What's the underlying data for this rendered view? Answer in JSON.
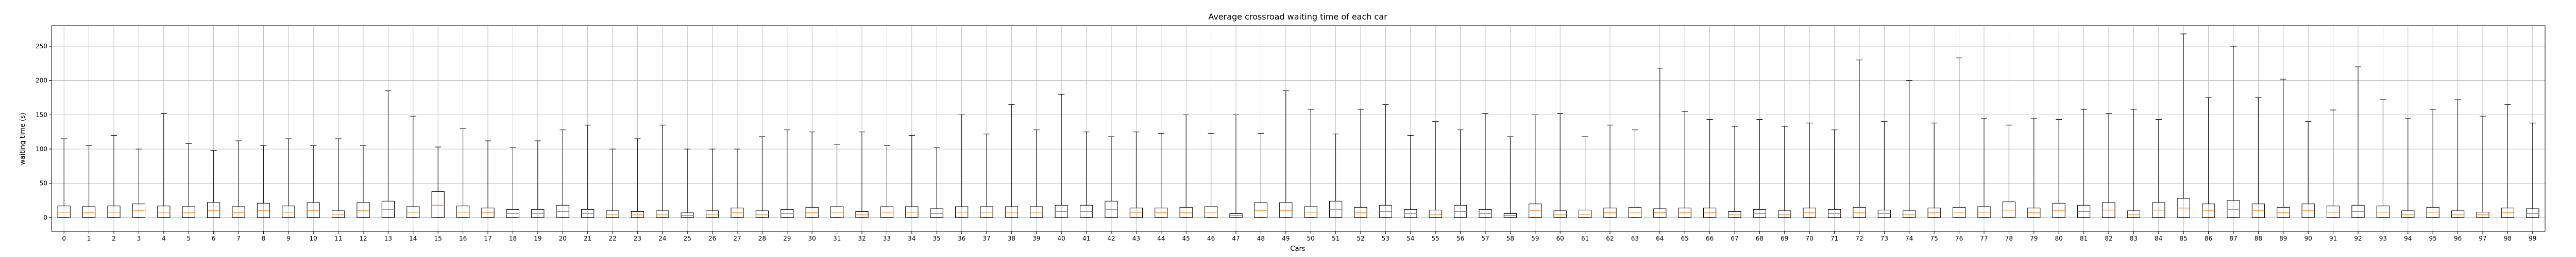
{
  "chart_data": {
    "type": "boxplot",
    "title": "Average crossroad waiting time of each car",
    "xlabel": "Cars",
    "ylabel": "waiting time (s)",
    "ylim": [
      -20,
      280
    ],
    "yticks": [
      0,
      50,
      100,
      150,
      200,
      250
    ],
    "grid": true,
    "colors": {
      "box": "#000000",
      "median": "#ff7f0e",
      "grid": "#b0b0b0",
      "background": "#ffffff"
    },
    "categories": [
      "0",
      "1",
      "2",
      "3",
      "4",
      "5",
      "6",
      "7",
      "8",
      "9",
      "10",
      "11",
      "12",
      "13",
      "14",
      "15",
      "16",
      "17",
      "18",
      "19",
      "20",
      "21",
      "22",
      "23",
      "24",
      "25",
      "26",
      "27",
      "28",
      "29",
      "30",
      "31",
      "32",
      "33",
      "34",
      "35",
      "36",
      "37",
      "38",
      "39",
      "40",
      "41",
      "42",
      "43",
      "44",
      "45",
      "46",
      "47",
      "48",
      "49",
      "50",
      "51",
      "52",
      "53",
      "54",
      "55",
      "56",
      "57",
      "58",
      "59",
      "60",
      "61",
      "62",
      "63",
      "64",
      "65",
      "66",
      "67",
      "68",
      "69",
      "70",
      "71",
      "72",
      "73",
      "74",
      "75",
      "76",
      "77",
      "78",
      "79",
      "80",
      "81",
      "82",
      "83",
      "84",
      "85",
      "86",
      "87",
      "88",
      "89",
      "90",
      "91",
      "92",
      "93",
      "94",
      "95",
      "96",
      "97",
      "98",
      "99"
    ],
    "boxes": [
      {
        "whislo": 0,
        "q1": 0,
        "med": 8,
        "q3": 17,
        "whishi": 115
      },
      {
        "whislo": 0,
        "q1": 0,
        "med": 7,
        "q3": 16,
        "whishi": 105
      },
      {
        "whislo": 0,
        "q1": 0,
        "med": 8,
        "q3": 17,
        "whishi": 120
      },
      {
        "whislo": 0,
        "q1": 0,
        "med": 10,
        "q3": 20,
        "whishi": 100
      },
      {
        "whislo": 0,
        "q1": 0,
        "med": 8,
        "q3": 17,
        "whishi": 152
      },
      {
        "whislo": 0,
        "q1": 0,
        "med": 7,
        "q3": 16,
        "whishi": 108
      },
      {
        "whislo": 0,
        "q1": 0,
        "med": 10,
        "q3": 22,
        "whishi": 98
      },
      {
        "whislo": 0,
        "q1": 0,
        "med": 7,
        "q3": 16,
        "whishi": 112
      },
      {
        "whislo": 0,
        "q1": 0,
        "med": 10,
        "q3": 21,
        "whishi": 105
      },
      {
        "whislo": 0,
        "q1": 0,
        "med": 8,
        "q3": 17,
        "whishi": 115
      },
      {
        "whislo": 0,
        "q1": 0,
        "med": 10,
        "q3": 22,
        "whishi": 105
      },
      {
        "whislo": 0,
        "q1": 0,
        "med": 5,
        "q3": 10,
        "whishi": 115
      },
      {
        "whislo": 0,
        "q1": 0,
        "med": 10,
        "q3": 22,
        "whishi": 105
      },
      {
        "whislo": 0,
        "q1": 0,
        "med": 12,
        "q3": 24,
        "whishi": 185
      },
      {
        "whislo": 0,
        "q1": 0,
        "med": 8,
        "q3": 16,
        "whishi": 148
      },
      {
        "whislo": 0,
        "q1": 0,
        "med": 18,
        "q3": 38,
        "whishi": 103
      },
      {
        "whislo": 0,
        "q1": 0,
        "med": 8,
        "q3": 17,
        "whishi": 130
      },
      {
        "whislo": 0,
        "q1": 0,
        "med": 7,
        "q3": 14,
        "whishi": 112
      },
      {
        "whislo": 0,
        "q1": 0,
        "med": 6,
        "q3": 12,
        "whishi": 102
      },
      {
        "whislo": 0,
        "q1": 0,
        "med": 6,
        "q3": 12,
        "whishi": 112
      },
      {
        "whislo": 0,
        "q1": 0,
        "med": 9,
        "q3": 18,
        "whishi": 128
      },
      {
        "whislo": 0,
        "q1": 0,
        "med": 6,
        "q3": 12,
        "whishi": 135
      },
      {
        "whislo": 0,
        "q1": 0,
        "med": 5,
        "q3": 10,
        "whishi": 100
      },
      {
        "whislo": 0,
        "q1": 0,
        "med": 4,
        "q3": 9,
        "whishi": 115
      },
      {
        "whislo": 0,
        "q1": 0,
        "med": 5,
        "q3": 10,
        "whishi": 135
      },
      {
        "whislo": 0,
        "q1": 0,
        "med": 3,
        "q3": 7,
        "whishi": 100
      },
      {
        "whislo": 0,
        "q1": 0,
        "med": 5,
        "q3": 10,
        "whishi": 100
      },
      {
        "whislo": 0,
        "q1": 0,
        "med": 7,
        "q3": 14,
        "whishi": 100
      },
      {
        "whislo": 0,
        "q1": 0,
        "med": 5,
        "q3": 10,
        "whishi": 118
      },
      {
        "whislo": 0,
        "q1": 0,
        "med": 6,
        "q3": 12,
        "whishi": 128
      },
      {
        "whislo": 0,
        "q1": 0,
        "med": 7,
        "q3": 15,
        "whishi": 125
      },
      {
        "whislo": 0,
        "q1": 0,
        "med": 8,
        "q3": 16,
        "whishi": 107
      },
      {
        "whislo": 0,
        "q1": 0,
        "med": 4,
        "q3": 9,
        "whishi": 125
      },
      {
        "whislo": 0,
        "q1": 0,
        "med": 8,
        "q3": 16,
        "whishi": 105
      },
      {
        "whislo": 0,
        "q1": 0,
        "med": 8,
        "q3": 16,
        "whishi": 120
      },
      {
        "whislo": 0,
        "q1": 0,
        "med": 6,
        "q3": 13,
        "whishi": 102
      },
      {
        "whislo": 0,
        "q1": 0,
        "med": 8,
        "q3": 16,
        "whishi": 150
      },
      {
        "whislo": 0,
        "q1": 0,
        "med": 8,
        "q3": 16,
        "whishi": 122
      },
      {
        "whislo": 0,
        "q1": 0,
        "med": 8,
        "q3": 16,
        "whishi": 165
      },
      {
        "whislo": 0,
        "q1": 0,
        "med": 8,
        "q3": 16,
        "whishi": 128
      },
      {
        "whislo": 0,
        "q1": 0,
        "med": 9,
        "q3": 18,
        "whishi": 180
      },
      {
        "whislo": 0,
        "q1": 0,
        "med": 9,
        "q3": 18,
        "whishi": 125
      },
      {
        "whislo": 0,
        "q1": 0,
        "med": 12,
        "q3": 24,
        "whishi": 118
      },
      {
        "whislo": 0,
        "q1": 0,
        "med": 7,
        "q3": 14,
        "whishi": 125
      },
      {
        "whislo": 0,
        "q1": 0,
        "med": 7,
        "q3": 14,
        "whishi": 123
      },
      {
        "whislo": 0,
        "q1": 0,
        "med": 7,
        "q3": 15,
        "whishi": 150
      },
      {
        "whislo": 0,
        "q1": 0,
        "med": 8,
        "q3": 16,
        "whishi": 123
      },
      {
        "whislo": 0,
        "q1": 0,
        "med": 3,
        "q3": 6,
        "whishi": 150
      },
      {
        "whislo": 0,
        "q1": 0,
        "med": 10,
        "q3": 22,
        "whishi": 123
      },
      {
        "whislo": 0,
        "q1": 0,
        "med": 10,
        "q3": 22,
        "whishi": 185
      },
      {
        "whislo": 0,
        "q1": 0,
        "med": 8,
        "q3": 16,
        "whishi": 158
      },
      {
        "whislo": 0,
        "q1": 0,
        "med": 12,
        "q3": 24,
        "whishi": 122
      },
      {
        "whislo": 0,
        "q1": 0,
        "med": 7,
        "q3": 15,
        "whishi": 158
      },
      {
        "whislo": 0,
        "q1": 0,
        "med": 9,
        "q3": 18,
        "whishi": 165
      },
      {
        "whislo": 0,
        "q1": 0,
        "med": 6,
        "q3": 12,
        "whishi": 120
      },
      {
        "whislo": 0,
        "q1": 0,
        "med": 5,
        "q3": 11,
        "whishi": 140
      },
      {
        "whislo": 0,
        "q1": 0,
        "med": 9,
        "q3": 18,
        "whishi": 128
      },
      {
        "whislo": 0,
        "q1": 0,
        "med": 6,
        "q3": 12,
        "whishi": 152
      },
      {
        "whislo": 0,
        "q1": 0,
        "med": 3,
        "q3": 6,
        "whishi": 118
      },
      {
        "whislo": 0,
        "q1": 0,
        "med": 10,
        "q3": 20,
        "whishi": 150
      },
      {
        "whislo": 0,
        "q1": 0,
        "med": 5,
        "q3": 10,
        "whishi": 152
      },
      {
        "whislo": 0,
        "q1": 0,
        "med": 5,
        "q3": 11,
        "whishi": 118
      },
      {
        "whislo": 0,
        "q1": 0,
        "med": 7,
        "q3": 14,
        "whishi": 135
      },
      {
        "whislo": 0,
        "q1": 0,
        "med": 8,
        "q3": 15,
        "whishi": 128
      },
      {
        "whislo": 0,
        "q1": 0,
        "med": 7,
        "q3": 13,
        "whishi": 218
      },
      {
        "whislo": 0,
        "q1": 0,
        "med": 7,
        "q3": 14,
        "whishi": 155
      },
      {
        "whislo": 0,
        "q1": 0,
        "med": 7,
        "q3": 14,
        "whishi": 143
      },
      {
        "whislo": 0,
        "q1": 0,
        "med": 5,
        "q3": 9,
        "whishi": 133
      },
      {
        "whislo": 0,
        "q1": 0,
        "med": 6,
        "q3": 12,
        "whishi": 143
      },
      {
        "whislo": 0,
        "q1": 0,
        "med": 5,
        "q3": 10,
        "whishi": 133
      },
      {
        "whislo": 0,
        "q1": 0,
        "med": 7,
        "q3": 14,
        "whishi": 138
      },
      {
        "whislo": 0,
        "q1": 0,
        "med": 6,
        "q3": 12,
        "whishi": 128
      },
      {
        "whislo": 0,
        "q1": 0,
        "med": 7,
        "q3": 15,
        "whishi": 230
      },
      {
        "whislo": 0,
        "q1": 0,
        "med": 6,
        "q3": 11,
        "whishi": 140
      },
      {
        "whislo": 0,
        "q1": 0,
        "med": 5,
        "q3": 10,
        "whishi": 200
      },
      {
        "whislo": 0,
        "q1": 0,
        "med": 7,
        "q3": 14,
        "whishi": 138
      },
      {
        "whislo": 0,
        "q1": 0,
        "med": 8,
        "q3": 15,
        "whishi": 233
      },
      {
        "whislo": 0,
        "q1": 0,
        "med": 8,
        "q3": 16,
        "whishi": 145
      },
      {
        "whislo": 0,
        "q1": 0,
        "med": 11,
        "q3": 23,
        "whishi": 135
      },
      {
        "whislo": 0,
        "q1": 0,
        "med": 7,
        "q3": 14,
        "whishi": 145
      },
      {
        "whislo": 0,
        "q1": 0,
        "med": 10,
        "q3": 21,
        "whishi": 143
      },
      {
        "whislo": 0,
        "q1": 0,
        "med": 9,
        "q3": 18,
        "whishi": 158
      },
      {
        "whislo": 0,
        "q1": 0,
        "med": 11,
        "q3": 22,
        "whishi": 152
      },
      {
        "whislo": 0,
        "q1": 0,
        "med": 5,
        "q3": 10,
        "whishi": 158
      },
      {
        "whislo": 0,
        "q1": 0,
        "med": 11,
        "q3": 22,
        "whishi": 143
      },
      {
        "whislo": 0,
        "q1": 0,
        "med": 14,
        "q3": 28,
        "whishi": 268
      },
      {
        "whislo": 0,
        "q1": 0,
        "med": 10,
        "q3": 20,
        "whishi": 175
      },
      {
        "whislo": 0,
        "q1": 0,
        "med": 12,
        "q3": 25,
        "whishi": 250
      },
      {
        "whislo": 0,
        "q1": 0,
        "med": 10,
        "q3": 20,
        "whishi": 175
      },
      {
        "whislo": 0,
        "q1": 0,
        "med": 7,
        "q3": 15,
        "whishi": 202
      },
      {
        "whislo": 0,
        "q1": 0,
        "med": 10,
        "q3": 20,
        "whishi": 140
      },
      {
        "whislo": 0,
        "q1": 0,
        "med": 8,
        "q3": 17,
        "whishi": 157
      },
      {
        "whislo": 0,
        "q1": 0,
        "med": 9,
        "q3": 18,
        "whishi": 220
      },
      {
        "whislo": 0,
        "q1": 0,
        "med": 8,
        "q3": 17,
        "whishi": 172
      },
      {
        "whislo": 0,
        "q1": 0,
        "med": 5,
        "q3": 10,
        "whishi": 145
      },
      {
        "whislo": 0,
        "q1": 0,
        "med": 8,
        "q3": 15,
        "whishi": 158
      },
      {
        "whislo": 0,
        "q1": 0,
        "med": 5,
        "q3": 10,
        "whishi": 172
      },
      {
        "whislo": 0,
        "q1": 0,
        "med": 4,
        "q3": 8,
        "whishi": 148
      },
      {
        "whislo": 0,
        "q1": 0,
        "med": 7,
        "q3": 14,
        "whishi": 165
      },
      {
        "whislo": 0,
        "q1": 0,
        "med": 6,
        "q3": 13,
        "whishi": 138
      }
    ]
  }
}
